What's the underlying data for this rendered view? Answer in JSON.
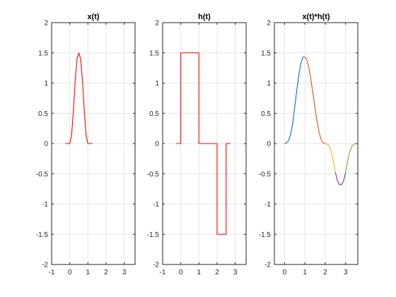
{
  "chart_data": [
    {
      "type": "line",
      "title": "x(t)",
      "xlabel": "",
      "ylabel": "",
      "xlim": [
        -1,
        3.6
      ],
      "ylim": [
        -2,
        2
      ],
      "xticks": [
        -1,
        0,
        1,
        2,
        3
      ],
      "yticks": [
        -2,
        -1.5,
        -1,
        -0.5,
        0,
        0.5,
        1,
        1.5,
        2
      ],
      "xtick_labels": [
        "-1",
        "0",
        "1",
        "2",
        "3"
      ],
      "ytick_labels": [
        "-2",
        "-1.5",
        "-1",
        "-0.5",
        "0",
        "0.5",
        "1",
        "1.5",
        "2"
      ],
      "grid": true,
      "series": [
        {
          "color": "#ff0000",
          "x": [
            -0.25,
            0,
            0.1,
            0.2,
            0.3,
            0.4,
            0.5,
            0.6,
            0.7,
            0.8,
            0.9,
            1.0,
            1.25
          ],
          "y": [
            0,
            0,
            0.14,
            0.54,
            1.04,
            1.4,
            1.5,
            1.4,
            1.04,
            0.54,
            0.14,
            0,
            0
          ]
        }
      ]
    },
    {
      "type": "line",
      "title": "h(t)",
      "xlabel": "",
      "ylabel": "",
      "xlim": [
        -1,
        3.6
      ],
      "ylim": [
        -2,
        2
      ],
      "xticks": [
        -1,
        0,
        1,
        2,
        3
      ],
      "yticks": [
        -2,
        -1.5,
        -1,
        -0.5,
        0,
        0.5,
        1,
        1.5,
        2
      ],
      "xtick_labels": [
        "-1",
        "0",
        "1",
        "2",
        "3"
      ],
      "ytick_labels": [
        "-2",
        "-1.5",
        "-1",
        "-0.5",
        "0",
        "0.5",
        "1",
        "1.5",
        "2"
      ],
      "grid": true,
      "series": [
        {
          "color": "#ff0000",
          "x": [
            -0.25,
            0,
            0,
            1,
            1,
            2,
            2,
            2.5,
            2.5,
            2.75
          ],
          "y": [
            0,
            0,
            1.5,
            1.5,
            0,
            0,
            -1.5,
            -1.5,
            0,
            0
          ]
        }
      ]
    },
    {
      "type": "line",
      "title": "x(t)*h(t)",
      "xlabel": "",
      "ylabel": "",
      "xlim": [
        -0.5,
        3.6
      ],
      "ylim": [
        -2,
        2
      ],
      "xticks": [
        0,
        1,
        2,
        3
      ],
      "yticks": [
        -2,
        -1.5,
        -1,
        -0.5,
        0,
        0.5,
        1,
        1.5,
        2
      ],
      "xtick_labels": [
        "0",
        "1",
        "2",
        "3"
      ],
      "ytick_labels": [
        "-2",
        "-1.5",
        "-1",
        "-0.5",
        "0",
        "0.5",
        "1",
        "1.5",
        "2"
      ],
      "grid": true,
      "series": [
        {
          "color": "#0072bd",
          "x": [
            0,
            0.1,
            0.2,
            0.3,
            0.4,
            0.5,
            0.6,
            0.7,
            0.8,
            0.9,
            1.0
          ],
          "y": [
            0,
            0.01,
            0.05,
            0.15,
            0.33,
            0.6,
            0.88,
            1.13,
            1.32,
            1.43,
            1.43
          ]
        },
        {
          "color": "#d95319",
          "x": [
            1.0,
            1.1,
            1.2,
            1.3,
            1.4,
            1.5,
            1.6,
            1.7,
            1.8,
            1.9,
            2.0
          ],
          "y": [
            1.43,
            1.38,
            1.25,
            1.05,
            0.82,
            0.58,
            0.36,
            0.18,
            0.06,
            0.01,
            0
          ]
        },
        {
          "color": "#edb120",
          "x": [
            2.0,
            2.1,
            2.2,
            2.3,
            2.4,
            2.5
          ],
          "y": [
            0,
            -0.01,
            -0.05,
            -0.14,
            -0.29,
            -0.48
          ]
        },
        {
          "color": "#7e2f8e",
          "x": [
            2.5,
            2.6,
            2.7,
            2.8,
            2.9,
            3.0
          ],
          "y": [
            -0.48,
            -0.62,
            -0.68,
            -0.68,
            -0.62,
            -0.48
          ]
        },
        {
          "color": "#77ac30",
          "x": [
            3.0,
            3.1,
            3.2,
            3.3,
            3.4,
            3.5
          ],
          "y": [
            -0.48,
            -0.29,
            -0.14,
            -0.05,
            -0.01,
            0
          ]
        }
      ]
    }
  ]
}
